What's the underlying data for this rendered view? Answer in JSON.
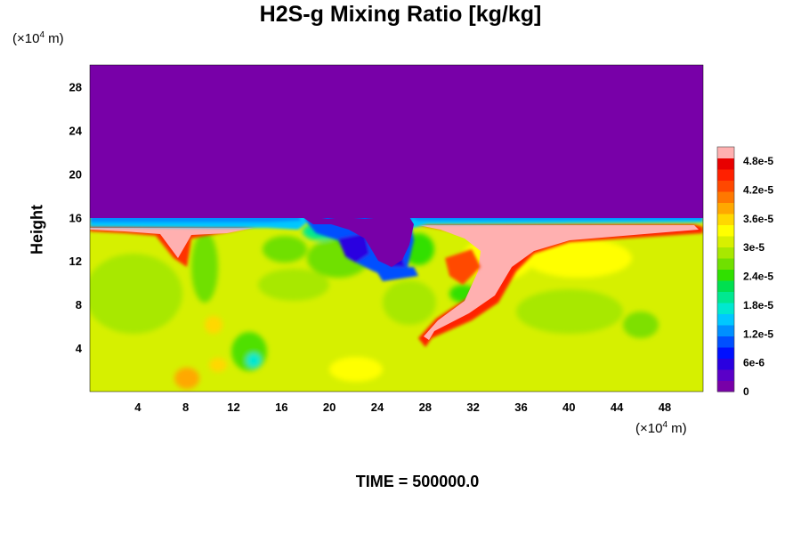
{
  "chart_data": {
    "type": "heatmap",
    "title": "H2S-g Mixing Ratio [kg/kg]",
    "ylabel": "Height",
    "x_unit_prefix": "(×10",
    "x_unit_exp": "4",
    "x_unit_suffix": " m)",
    "y_unit_prefix": "(×10",
    "y_unit_exp": "4",
    "y_unit_suffix": " m)",
    "xlim": [
      0,
      51.2
    ],
    "ylim": [
      0,
      30
    ],
    "x_ticks": [
      4,
      8,
      12,
      16,
      20,
      24,
      28,
      32,
      36,
      40,
      44,
      48
    ],
    "y_ticks": [
      4,
      8,
      12,
      16,
      20,
      24,
      28
    ],
    "colorbar": {
      "min": 0,
      "max": 5.1e-05,
      "tick_values": [
        0,
        6e-06,
        1.2e-05,
        1.8e-05,
        2.4e-05,
        3e-05,
        3.6e-05,
        4.2e-05,
        4.8e-05
      ],
      "tick_labels": [
        "0",
        "6e-6",
        "1.2e-5",
        "1.8e-5",
        "2.4e-5",
        "3e-5",
        "3.6e-5",
        "4.2e-5",
        "4.8e-5"
      ],
      "colors": [
        "#7800a8",
        "#5a00c8",
        "#2a00e0",
        "#0010ff",
        "#0050ff",
        "#0090ff",
        "#00c8ff",
        "#00e8d0",
        "#00e890",
        "#00e050",
        "#30e000",
        "#70e000",
        "#a8e800",
        "#d8f000",
        "#ffff00",
        "#ffd800",
        "#ffa800",
        "#ff7800",
        "#ff4800",
        "#ff2000",
        "#e80000",
        "#ffb0b0"
      ]
    },
    "approx_fields": {
      "upper_layer_above_height": 15.8,
      "upper_layer_value": 0,
      "lower_layer_typical_value": 3.3e-05
    }
  },
  "footer": {
    "time_label": "TIME = 500000.0"
  }
}
